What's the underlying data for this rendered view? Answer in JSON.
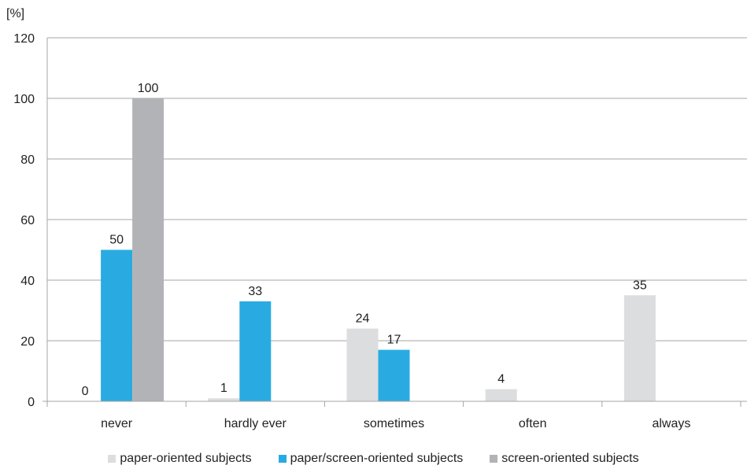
{
  "chart_data": {
    "type": "bar",
    "y_unit_label": "[%]",
    "categories": [
      "never",
      "hardly ever",
      "sometimes",
      "often",
      "always"
    ],
    "series": [
      {
        "name": "paper-oriented subjects",
        "color": "#dcdddf",
        "values": [
          0,
          1,
          24,
          4,
          35
        ]
      },
      {
        "name": "paper/screen-oriented subjects",
        "color": "#29abe2",
        "values": [
          50,
          33,
          17,
          null,
          null
        ]
      },
      {
        "name": "screen-oriented subjects",
        "color": "#b2b3b6",
        "values": [
          100,
          null,
          null,
          null,
          null
        ]
      }
    ],
    "ylim": [
      0,
      120
    ],
    "yticks": [
      0,
      20,
      40,
      60,
      80,
      100,
      120
    ],
    "grid": true,
    "legend_position": "bottom",
    "data_labels": true
  }
}
